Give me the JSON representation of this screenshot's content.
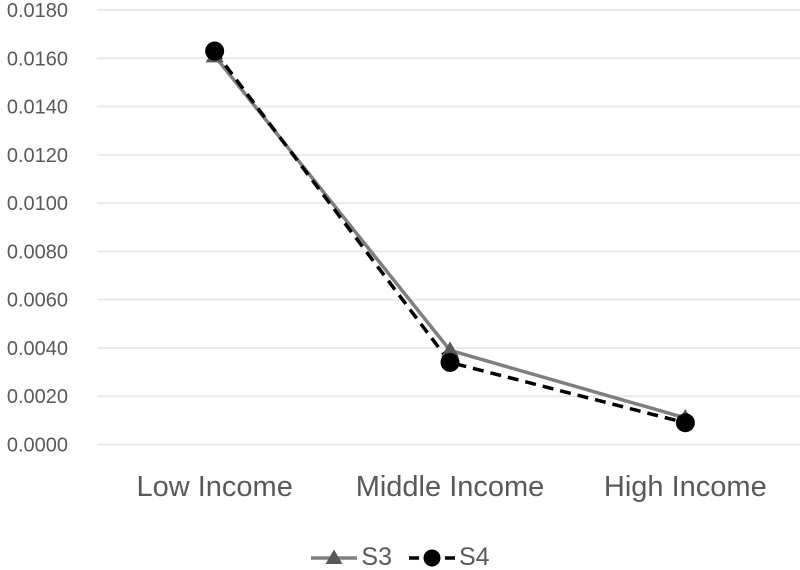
{
  "chart_data": {
    "type": "line",
    "title": "",
    "xlabel": "",
    "ylabel": "",
    "categories": [
      "Low Income",
      "Middle Income",
      "High Income"
    ],
    "series": [
      {
        "name": "S3",
        "values": [
          0.0161,
          0.0039,
          0.0011
        ],
        "line_color": "#7F7F7F",
        "line_style": "solid",
        "marker": "triangle",
        "marker_color": "#595959"
      },
      {
        "name": "S4",
        "values": [
          0.0163,
          0.0034,
          0.0009
        ],
        "line_color": "#000000",
        "line_style": "dashed",
        "marker": "circle",
        "marker_color": "#000000"
      }
    ],
    "ylim": [
      0,
      0.018
    ],
    "y_tick_values": [
      0,
      0.002,
      0.004,
      0.006,
      0.008,
      0.01,
      0.012,
      0.014,
      0.016,
      0.018
    ],
    "y_tick_labels": [
      "0.0000",
      "0.0020",
      "0.0040",
      "0.0060",
      "0.0080",
      "0.0100",
      "0.0120",
      "0.0140",
      "0.0160",
      "0.0180"
    ],
    "grid": true,
    "legend_position": "bottom",
    "colors": {
      "background": "#FFFFFF",
      "text": "#595959",
      "gridline": "#E9E9E9"
    }
  }
}
